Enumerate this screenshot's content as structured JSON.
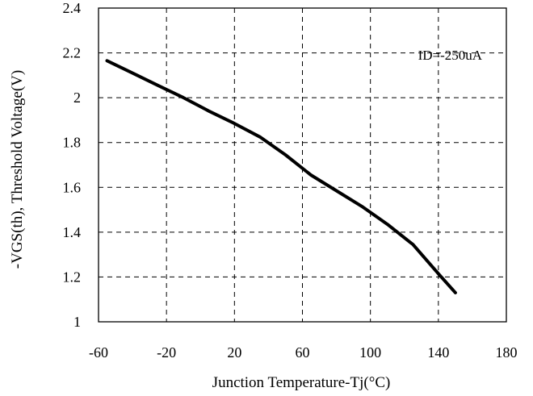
{
  "chart_data": {
    "type": "line",
    "xlabel": "Junction Temperature-Tj(°C)",
    "ylabel": "-VGS(th), Threshold Voltage(V)",
    "xlim": [
      -60,
      180
    ],
    "ylim": [
      1,
      2.4
    ],
    "x_ticks": [
      "-60",
      "-20",
      "20",
      "60",
      "100",
      "140",
      "180"
    ],
    "y_ticks": [
      "1",
      "1.2",
      "1.4",
      "1.6",
      "1.8",
      "2",
      "2.2",
      "2.4"
    ],
    "grid": true,
    "grid_style": "dashed",
    "annotations": [
      {
        "text": "ID=-250uA",
        "x": 128,
        "y": 2.17
      }
    ],
    "series": [
      {
        "color": "#000000",
        "x": [
          -55,
          -40,
          -25,
          -10,
          5,
          20,
          35,
          50,
          65,
          80,
          95,
          110,
          125,
          140,
          150
        ],
        "y": [
          2.165,
          2.11,
          2.055,
          2.0,
          1.94,
          1.885,
          1.825,
          1.745,
          1.655,
          1.585,
          1.515,
          1.435,
          1.345,
          1.215,
          1.13
        ]
      }
    ]
  }
}
